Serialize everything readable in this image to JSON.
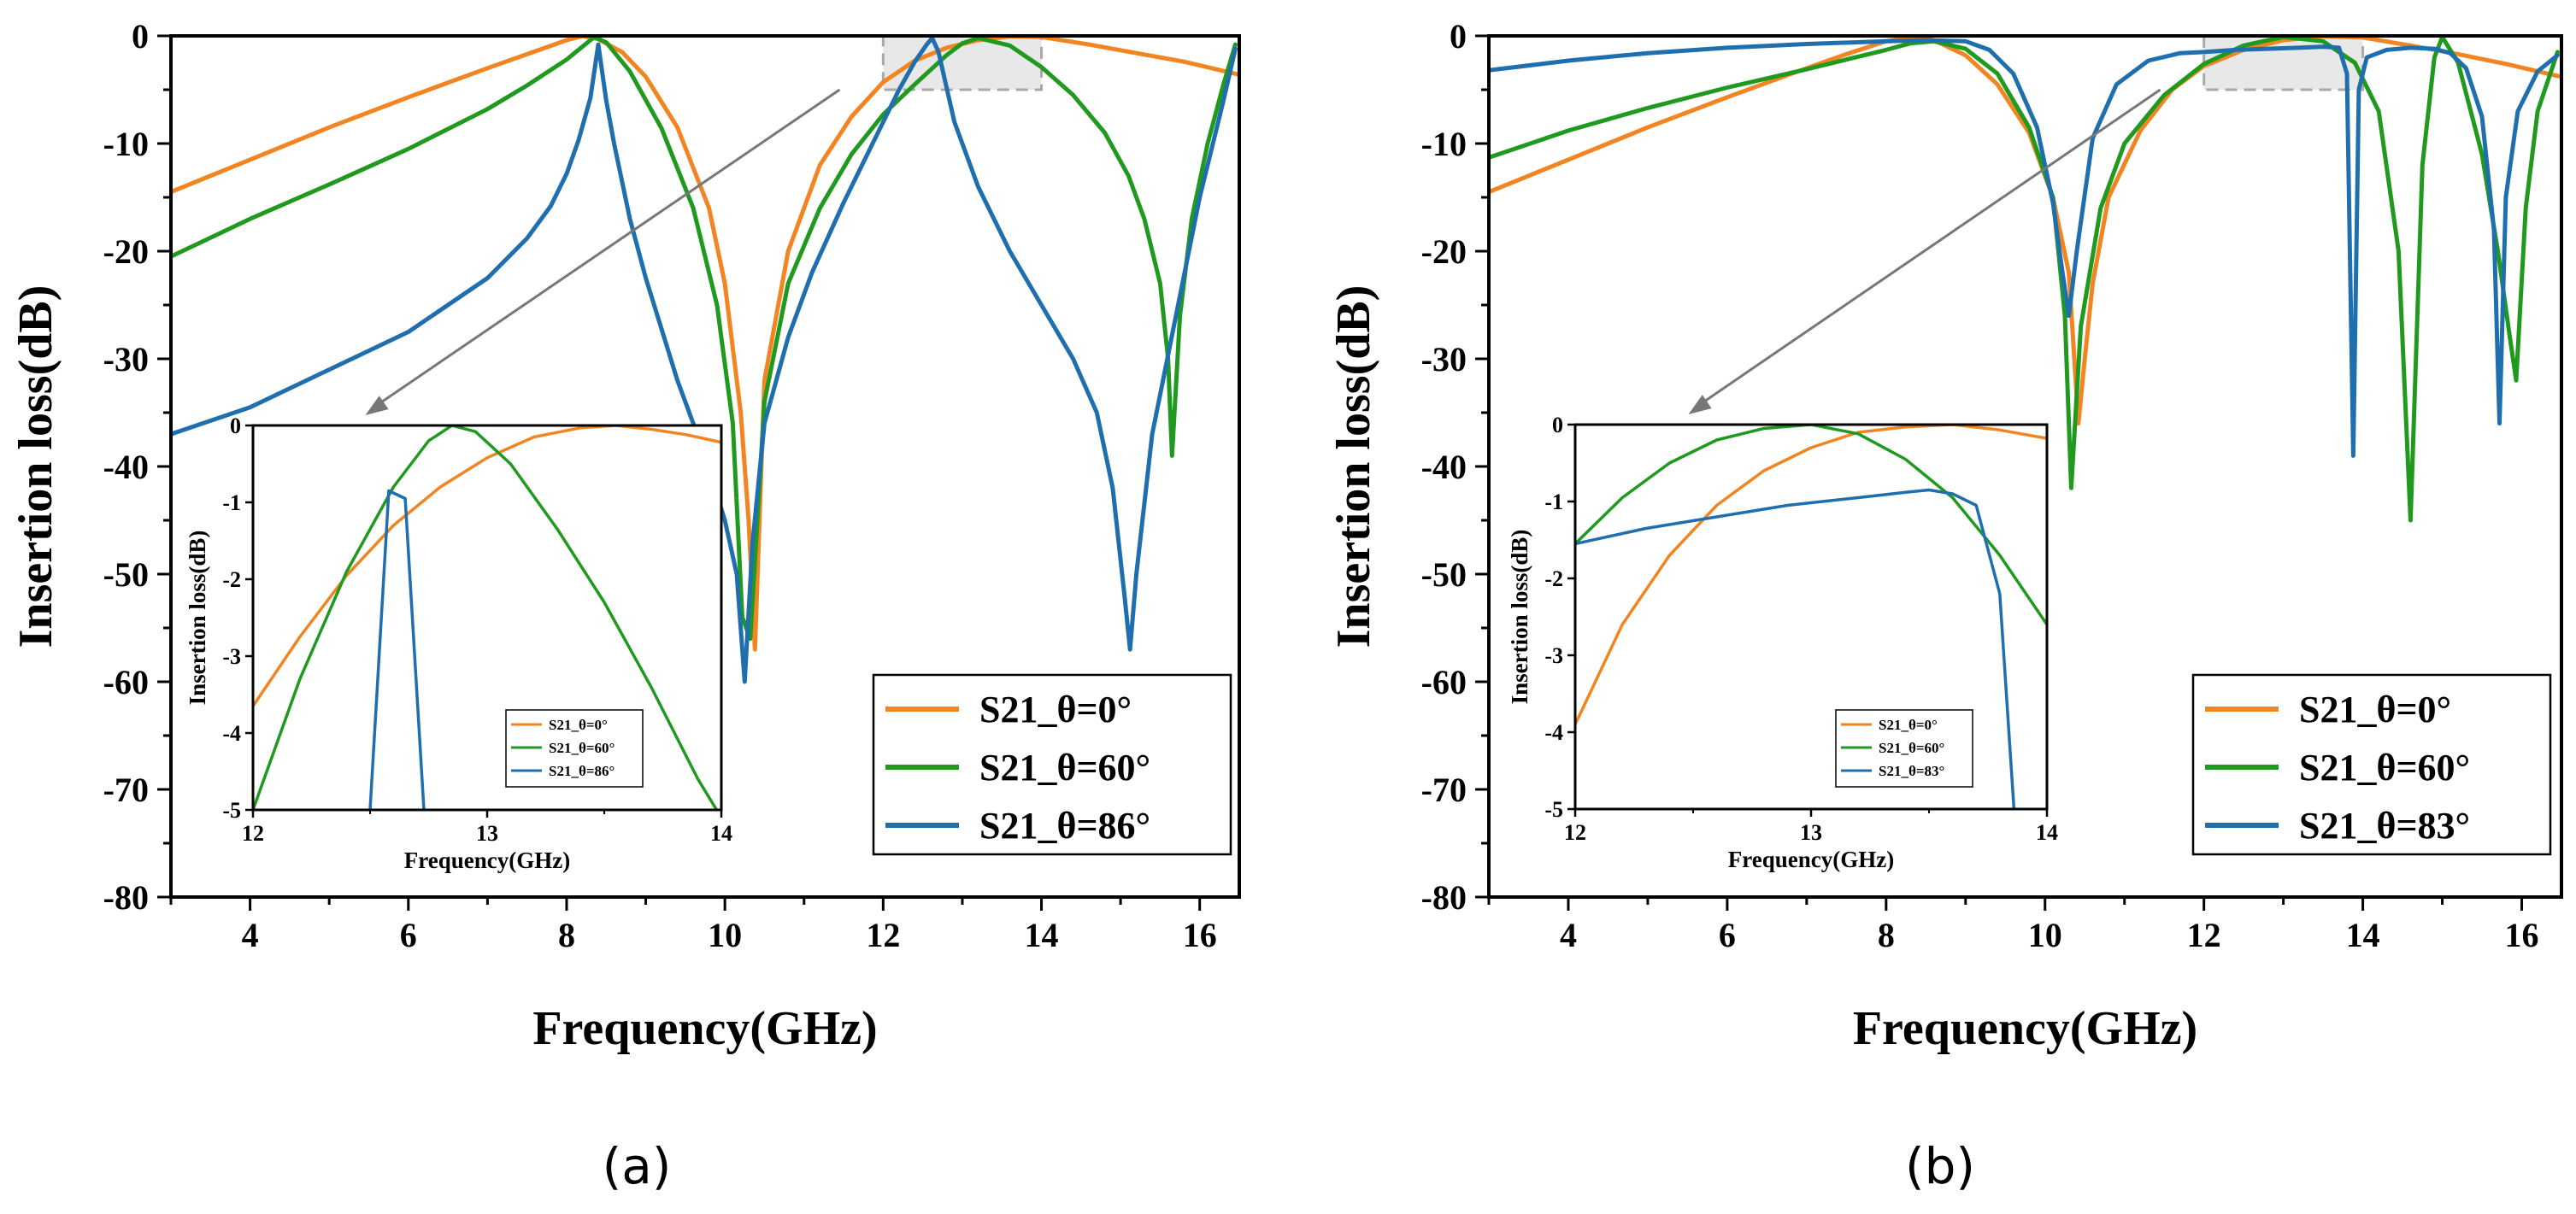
{
  "figure": {
    "panels": [
      {
        "label": "(a)",
        "theta_max": "86"
      },
      {
        "label": "(b)",
        "theta_max": "83"
      }
    ]
  },
  "chart_data": [
    {
      "type": "line",
      "panel": "(a)",
      "xlabel": "Frequency(GHz)",
      "ylabel": "Insertion loss(dB)",
      "xlim": [
        3,
        16.5
      ],
      "ylim": [
        -80,
        0
      ],
      "xticks": [
        4,
        6,
        8,
        10,
        12,
        14,
        16
      ],
      "yticks": [
        0,
        -10,
        -20,
        -30,
        -40,
        -50,
        -60,
        -70,
        -80
      ],
      "legend_position": "bottom-right",
      "series": [
        {
          "name": "S21_θ=0°",
          "color": "#F28522",
          "x": [
            3,
            4,
            5,
            6,
            7,
            7.5,
            8,
            8.2,
            8.4,
            8.7,
            9.0,
            9.4,
            9.8,
            10.0,
            10.2,
            10.3,
            10.38,
            10.5,
            10.8,
            11.2,
            11.6,
            12.0,
            12.4,
            12.8,
            13.2,
            13.6,
            14.0,
            14.6,
            15.2,
            15.8,
            16.5
          ],
          "y": [
            -14.5,
            -11.5,
            -8.5,
            -5.7,
            -3.0,
            -1.7,
            -0.4,
            -0.02,
            -0.3,
            -1.5,
            -3.8,
            -8.5,
            -16,
            -23,
            -35,
            -45,
            -57,
            -32,
            -20,
            -12,
            -7.5,
            -4.3,
            -2.3,
            -1.1,
            -0.4,
            -0.05,
            -0.1,
            -0.8,
            -1.6,
            -2.4,
            -3.6
          ]
        },
        {
          "name": "S21_θ=60°",
          "color": "#1F9A1F",
          "x": [
            3,
            4,
            5,
            6,
            7,
            7.5,
            8,
            8.2,
            8.35,
            8.5,
            8.8,
            9.2,
            9.6,
            9.9,
            10.1,
            10.22,
            10.32,
            10.5,
            10.8,
            11.2,
            11.6,
            12.0,
            12.4,
            12.8,
            13.0,
            13.2,
            13.6,
            14.0,
            14.4,
            14.8,
            15.1,
            15.3,
            15.5,
            15.6,
            15.65,
            15.75,
            15.9,
            16.1,
            16.3,
            16.45
          ],
          "y": [
            -20.5,
            -17,
            -13.8,
            -10.5,
            -6.8,
            -4.6,
            -2.2,
            -1.0,
            -0.1,
            -0.6,
            -3.3,
            -8.6,
            -16,
            -25,
            -36,
            -54,
            -56,
            -34,
            -23,
            -16,
            -11,
            -7.3,
            -4.5,
            -1.8,
            -0.7,
            -0.2,
            -0.9,
            -2.9,
            -5.5,
            -9.0,
            -13,
            -17,
            -23,
            -30,
            -39,
            -26,
            -17,
            -10,
            -4.5,
            -0.8
          ]
        },
        {
          "name": "S21_θ=86°",
          "color": "#1F6FAF",
          "x": [
            3,
            4,
            5,
            6,
            7,
            7.5,
            7.8,
            8.0,
            8.15,
            8.3,
            8.4,
            8.5,
            8.6,
            8.8,
            9.0,
            9.4,
            9.7,
            10.0,
            10.15,
            10.25,
            10.35,
            10.5,
            10.8,
            11.1,
            11.5,
            11.9,
            12.2,
            12.4,
            12.55,
            12.62,
            12.7,
            12.9,
            13.2,
            13.6,
            14.0,
            14.4,
            14.7,
            14.9,
            15.05,
            15.12,
            15.2,
            15.4,
            15.7,
            16.0,
            16.3,
            16.45
          ],
          "y": [
            -37,
            -34.5,
            -31,
            -27.5,
            -22.5,
            -18.8,
            -15.8,
            -12.8,
            -9.7,
            -5.8,
            -0.8,
            -6.0,
            -10.0,
            -17.0,
            -22.5,
            -32,
            -38,
            -45,
            -50,
            -60,
            -47,
            -36,
            -28,
            -22,
            -15.5,
            -9.5,
            -5.0,
            -2.4,
            -0.8,
            -0.2,
            -1.5,
            -8.0,
            -14,
            -20,
            -25,
            -30,
            -35,
            -42,
            -52,
            -57,
            -50,
            -37,
            -26,
            -15,
            -6,
            -1.2
          ]
        }
      ],
      "inset": {
        "xlabel": "Frequency(GHz)",
        "ylabel": "Insertion loss(dB)",
        "xlim": [
          12,
          14
        ],
        "ylim": [
          -5,
          0
        ],
        "xticks": [
          12,
          13,
          14
        ],
        "yticks": [
          0,
          -1,
          -2,
          -3,
          -4,
          -5
        ],
        "legend_position": "bottom-right",
        "series": [
          {
            "name": "S21_θ=0°",
            "color": "#F28522",
            "x": [
              12.0,
              12.2,
              12.4,
              12.6,
              12.8,
              13.0,
              13.2,
              13.4,
              13.55,
              13.7,
              13.85,
              14.0
            ],
            "y": [
              -3.65,
              -2.75,
              -1.95,
              -1.3,
              -0.8,
              -0.42,
              -0.15,
              -0.03,
              0.0,
              -0.05,
              -0.12,
              -0.22
            ]
          },
          {
            "name": "S21_θ=60°",
            "color": "#1F9A1F",
            "x": [
              12.0,
              12.2,
              12.4,
              12.6,
              12.75,
              12.85,
              12.95,
              13.1,
              13.3,
              13.5,
              13.7,
              13.9,
              13.98
            ],
            "y": [
              -5.0,
              -3.3,
              -1.9,
              -0.8,
              -0.2,
              0.0,
              -0.08,
              -0.5,
              -1.35,
              -2.3,
              -3.4,
              -4.6,
              -5.0
            ]
          },
          {
            "name": "S21_θ=86°",
            "color": "#1F6FAF",
            "x": [
              12.5,
              12.58,
              12.65,
              12.73
            ],
            "y": [
              -5.0,
              -0.85,
              -0.95,
              -5.0
            ]
          }
        ]
      },
      "zoom_box": {
        "x": [
          12,
          14
        ],
        "y": [
          -5,
          0
        ]
      }
    },
    {
      "type": "line",
      "panel": "(b)",
      "xlabel": "Frequency(GHz)",
      "ylabel": "Insertion loss(dB)",
      "xlim": [
        3,
        16.5
      ],
      "ylim": [
        -80,
        0
      ],
      "xticks": [
        4,
        6,
        8,
        10,
        12,
        14,
        16
      ],
      "yticks": [
        0,
        -10,
        -20,
        -30,
        -40,
        -50,
        -60,
        -70,
        -80
      ],
      "legend_position": "bottom-right",
      "series": [
        {
          "name": "S21_θ=0°",
          "color": "#F28522",
          "x": [
            3,
            4,
            5,
            6,
            7,
            7.5,
            8,
            8.3,
            8.6,
            9.0,
            9.4,
            9.8,
            10.1,
            10.3,
            10.42,
            10.5,
            10.6,
            10.8,
            11.2,
            11.6,
            12.0,
            12.5,
            13.0,
            13.5,
            14.0,
            14.6,
            15.2,
            15.8,
            16.5
          ],
          "y": [
            -14.5,
            -11.5,
            -8.5,
            -5.7,
            -3.0,
            -1.7,
            -0.5,
            -0.1,
            -0.4,
            -1.8,
            -4.5,
            -9.0,
            -15,
            -22,
            -36,
            -30,
            -23,
            -15,
            -8.8,
            -5.0,
            -2.8,
            -1.3,
            -0.4,
            -0.05,
            -0.15,
            -0.9,
            -1.7,
            -2.6,
            -3.8
          ]
        },
        {
          "name": "S21_θ=60°",
          "color": "#1F9A1F",
          "x": [
            3,
            4,
            5,
            6,
            7,
            7.5,
            8,
            8.3,
            8.6,
            9.0,
            9.4,
            9.8,
            10.1,
            10.25,
            10.33,
            10.45,
            10.7,
            11.0,
            11.5,
            12.0,
            12.5,
            13.0,
            13.5,
            13.9,
            14.2,
            14.45,
            14.6,
            14.75,
            14.9,
            15.0,
            15.2,
            15.5,
            15.7,
            15.85,
            15.93,
            16.05,
            16.2,
            16.45
          ],
          "y": [
            -11.3,
            -8.8,
            -6.7,
            -4.8,
            -3.1,
            -2.2,
            -1.3,
            -0.7,
            -0.5,
            -1.2,
            -3.5,
            -8.5,
            -15,
            -26,
            -42,
            -27,
            -16,
            -10,
            -5.5,
            -2.6,
            -0.9,
            -0.1,
            -0.5,
            -2.5,
            -7.0,
            -20,
            -45,
            -12,
            -2.0,
            -0.1,
            -2.5,
            -11,
            -20,
            -28,
            -32,
            -16,
            -7,
            -1.5
          ]
        },
        {
          "name": "S21_θ=83°",
          "color": "#1F6FAF",
          "x": [
            3,
            4,
            5,
            6,
            7,
            8,
            8.5,
            9.0,
            9.3,
            9.6,
            9.9,
            10.1,
            10.22,
            10.3,
            10.4,
            10.6,
            10.9,
            11.3,
            11.7,
            12.0,
            12.4,
            12.8,
            13.2,
            13.5,
            13.7,
            13.8,
            13.88,
            13.95,
            14.05,
            14.3,
            14.6,
            14.9,
            15.1,
            15.3,
            15.5,
            15.65,
            15.72,
            15.8,
            15.95,
            16.2,
            16.45
          ],
          "y": [
            -3.2,
            -2.3,
            -1.6,
            -1.1,
            -0.75,
            -0.5,
            -0.4,
            -0.5,
            -1.3,
            -3.5,
            -8.5,
            -15.5,
            -22,
            -26,
            -20,
            -9.5,
            -4.5,
            -2.3,
            -1.6,
            -1.5,
            -1.3,
            -1.2,
            -1.1,
            -1.0,
            -1.1,
            -3.5,
            -39,
            -5,
            -2.0,
            -1.3,
            -1.1,
            -1.2,
            -1.6,
            -3.0,
            -7.5,
            -18,
            -36,
            -15,
            -7,
            -3.3,
            -1.8
          ]
        }
      ],
      "inset": {
        "xlabel": "Frequency(GHz)",
        "ylabel": "Insertion loss(dB)",
        "xlim": [
          12,
          14
        ],
        "ylim": [
          -5,
          0
        ],
        "xticks": [
          12,
          13,
          14
        ],
        "yticks": [
          0,
          -1,
          -2,
          -3,
          -4,
          -5
        ],
        "legend_position": "bottom-right",
        "series": [
          {
            "name": "S21_θ=0°",
            "color": "#F28522",
            "x": [
              12.0,
              12.2,
              12.4,
              12.6,
              12.8,
              13.0,
              13.2,
              13.4,
              13.6,
              13.8,
              14.0
            ],
            "y": [
              -3.9,
              -2.6,
              -1.7,
              -1.05,
              -0.6,
              -0.3,
              -0.1,
              -0.03,
              0.0,
              -0.07,
              -0.18
            ]
          },
          {
            "name": "S21_θ=60°",
            "color": "#1F9A1F",
            "x": [
              12.0,
              12.2,
              12.4,
              12.6,
              12.8,
              13.0,
              13.2,
              13.4,
              13.6,
              13.8,
              14.0
            ],
            "y": [
              -1.55,
              -0.95,
              -0.5,
              -0.2,
              -0.05,
              0.0,
              -0.12,
              -0.45,
              -0.95,
              -1.7,
              -2.6
            ]
          },
          {
            "name": "S21_θ=83°",
            "color": "#1F6FAF",
            "x": [
              12.0,
              12.3,
              12.6,
              12.9,
              13.2,
              13.4,
              13.5,
              13.6,
              13.7,
              13.8,
              13.86
            ],
            "y": [
              -1.55,
              -1.35,
              -1.2,
              -1.05,
              -0.95,
              -0.88,
              -0.85,
              -0.9,
              -1.05,
              -2.2,
              -5.0
            ]
          }
        ]
      },
      "zoom_box": {
        "x": [
          12,
          14
        ],
        "y": [
          -5,
          0
        ]
      }
    }
  ]
}
